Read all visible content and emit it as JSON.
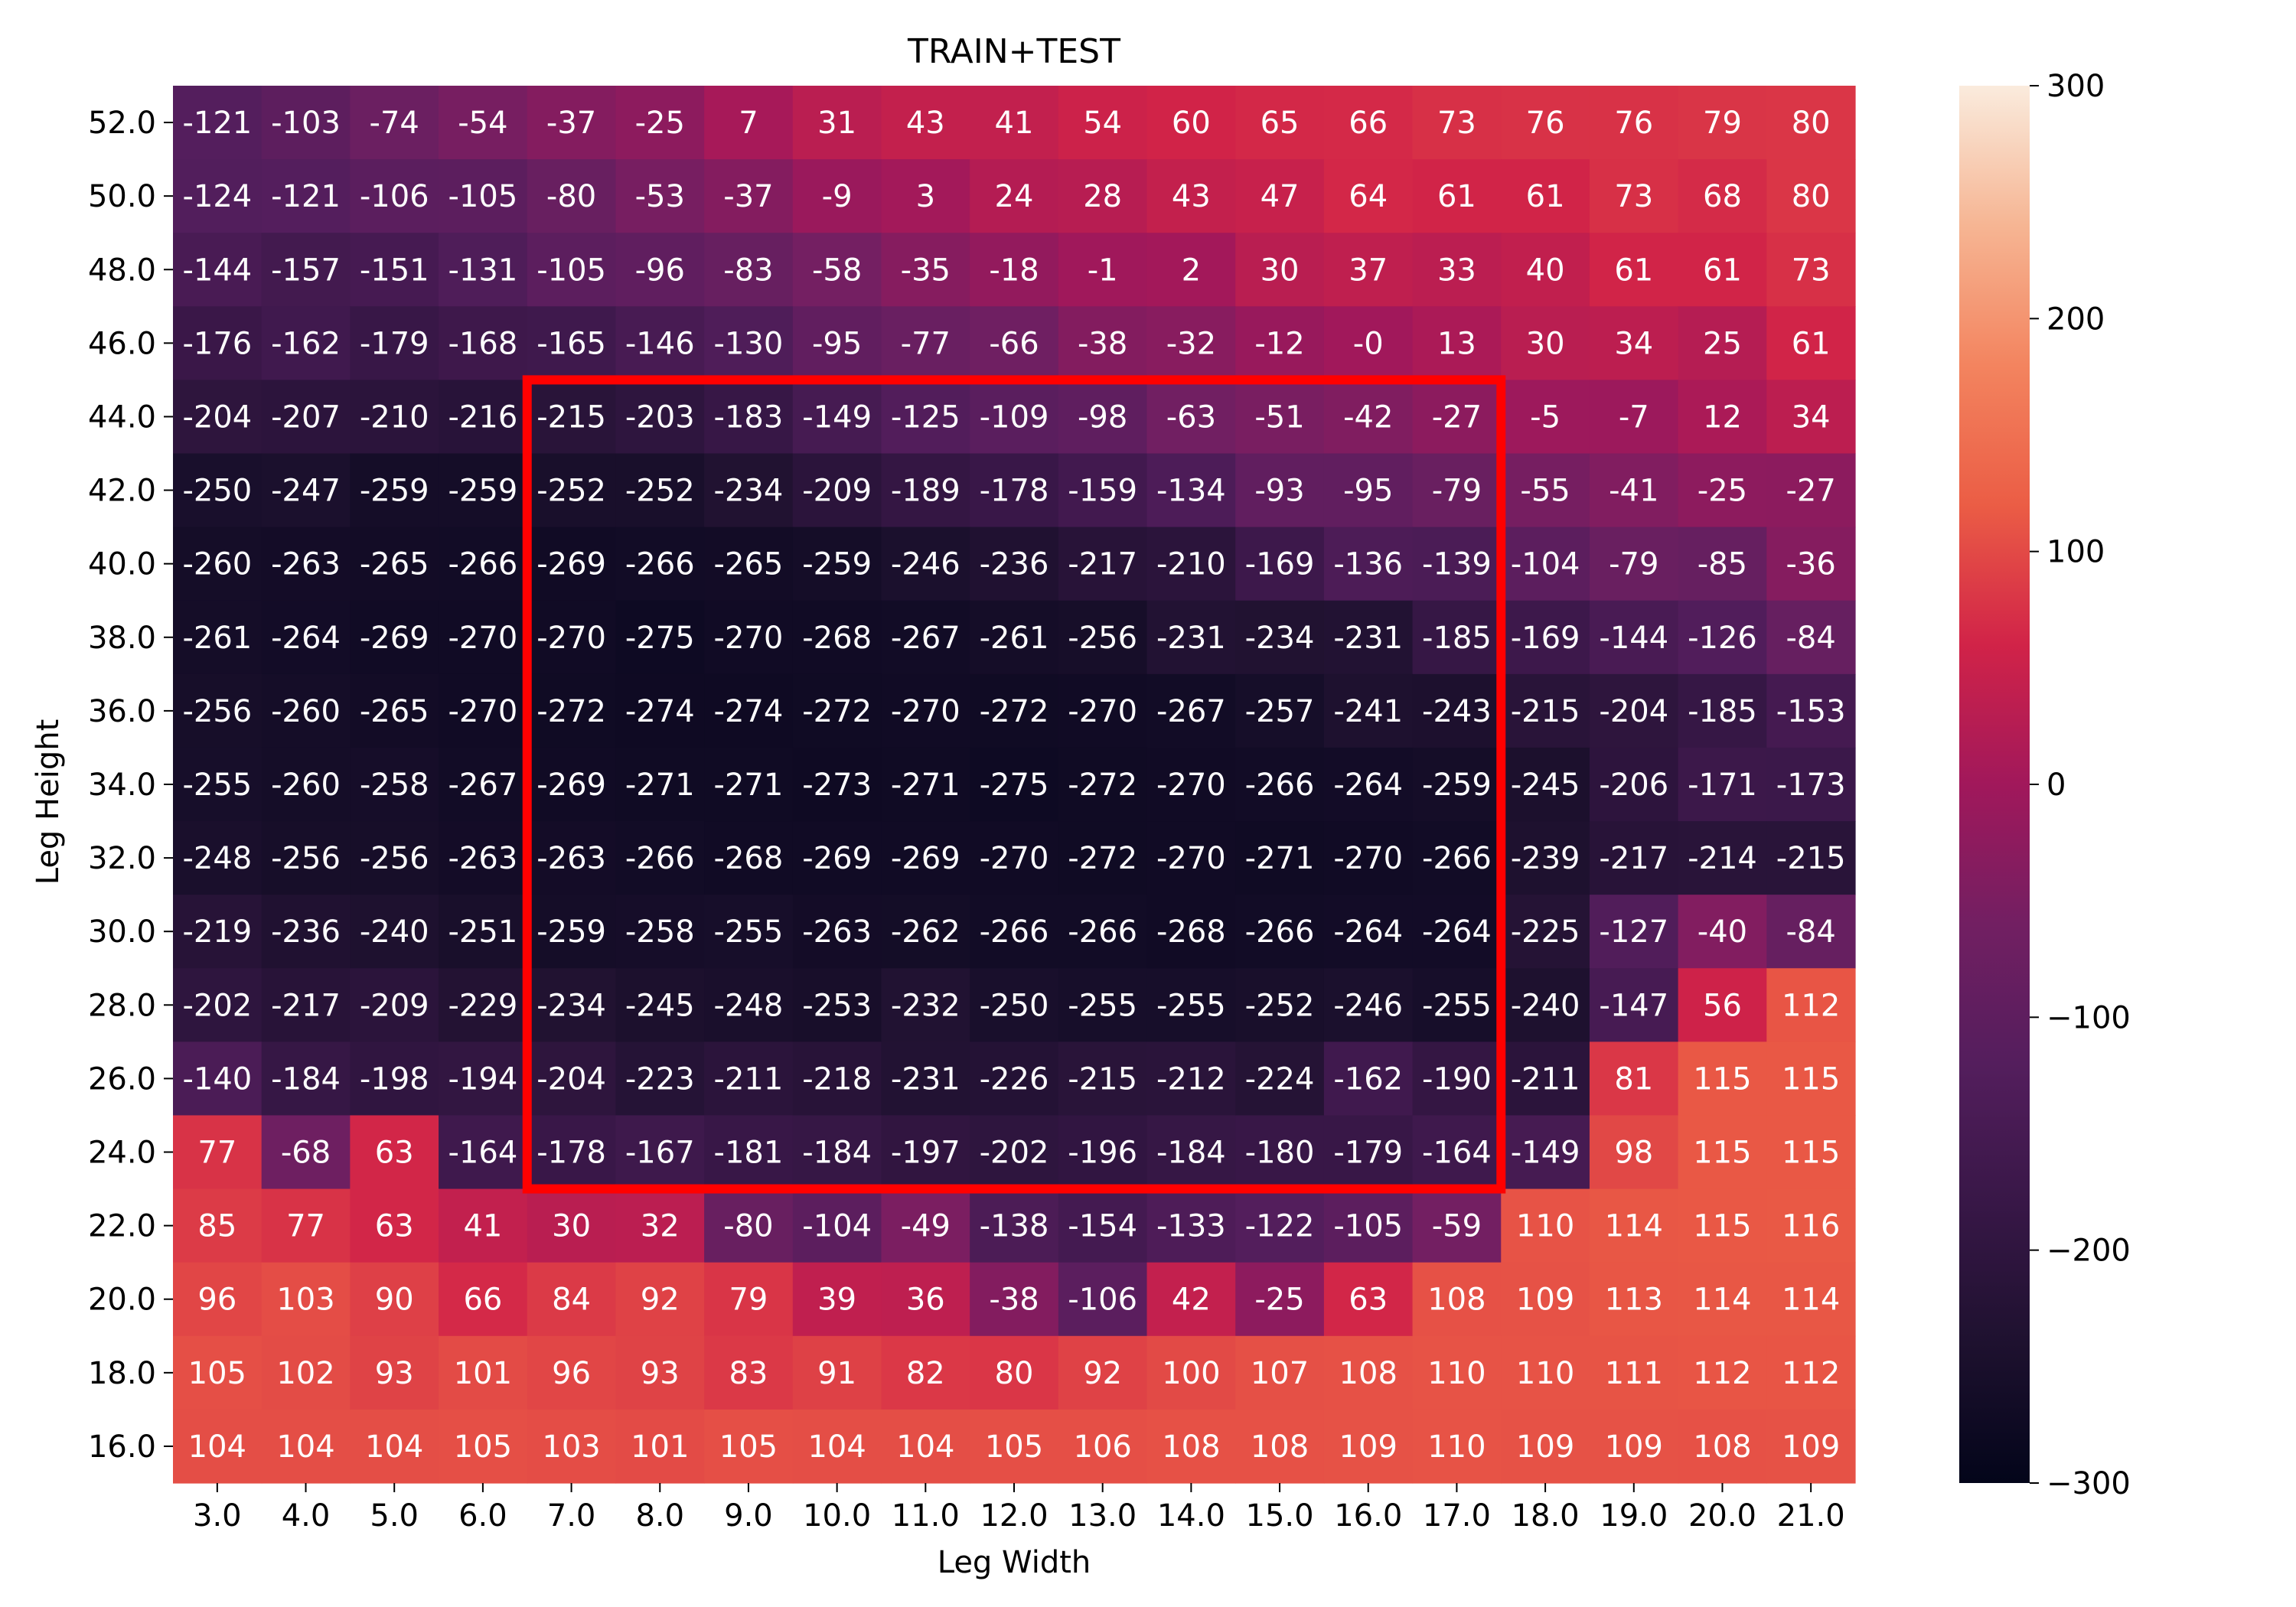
{
  "chart_data": {
    "type": "heatmap",
    "title": "TRAIN+TEST",
    "xlabel": "Leg Width",
    "ylabel": "Leg Height",
    "x": [
      "3.0",
      "4.0",
      "5.0",
      "6.0",
      "7.0",
      "8.0",
      "9.0",
      "10.0",
      "11.0",
      "12.0",
      "13.0",
      "14.0",
      "15.0",
      "16.0",
      "17.0",
      "18.0",
      "19.0",
      "20.0",
      "21.0"
    ],
    "y": [
      "52.0",
      "50.0",
      "48.0",
      "46.0",
      "44.0",
      "42.0",
      "40.0",
      "38.0",
      "36.0",
      "34.0",
      "32.0",
      "30.0",
      "28.0",
      "26.0",
      "24.0",
      "22.0",
      "20.0",
      "18.0",
      "16.0"
    ],
    "cell_labels": [
      [
        "-121",
        "-103",
        "-74",
        "-54",
        "-37",
        "-25",
        "7",
        "31",
        "43",
        "41",
        "54",
        "60",
        "65",
        "66",
        "73",
        "76",
        "76",
        "79",
        "80"
      ],
      [
        "-124",
        "-121",
        "-106",
        "-105",
        "-80",
        "-53",
        "-37",
        "-9",
        "3",
        "24",
        "28",
        "43",
        "47",
        "64",
        "61",
        "61",
        "73",
        "68",
        "80"
      ],
      [
        "-144",
        "-157",
        "-151",
        "-131",
        "-105",
        "-96",
        "-83",
        "-58",
        "-35",
        "-18",
        "-1",
        "2",
        "30",
        "37",
        "33",
        "40",
        "61",
        "61",
        "73"
      ],
      [
        "-176",
        "-162",
        "-179",
        "-168",
        "-165",
        "-146",
        "-130",
        "-95",
        "-77",
        "-66",
        "-38",
        "-32",
        "-12",
        "-0",
        "13",
        "30",
        "34",
        "25",
        "61"
      ],
      [
        "-204",
        "-207",
        "-210",
        "-216",
        "-215",
        "-203",
        "-183",
        "-149",
        "-125",
        "-109",
        "-98",
        "-63",
        "-51",
        "-42",
        "-27",
        "-5",
        "-7",
        "12",
        "34"
      ],
      [
        "-250",
        "-247",
        "-259",
        "-259",
        "-252",
        "-252",
        "-234",
        "-209",
        "-189",
        "-178",
        "-159",
        "-134",
        "-93",
        "-95",
        "-79",
        "-55",
        "-41",
        "-25",
        "-27"
      ],
      [
        "-260",
        "-263",
        "-265",
        "-266",
        "-269",
        "-266",
        "-265",
        "-259",
        "-246",
        "-236",
        "-217",
        "-210",
        "-169",
        "-136",
        "-139",
        "-104",
        "-79",
        "-85",
        "-36"
      ],
      [
        "-261",
        "-264",
        "-269",
        "-270",
        "-270",
        "-275",
        "-270",
        "-268",
        "-267",
        "-261",
        "-256",
        "-231",
        "-234",
        "-231",
        "-185",
        "-169",
        "-144",
        "-126",
        "-84"
      ],
      [
        "-256",
        "-260",
        "-265",
        "-270",
        "-272",
        "-274",
        "-274",
        "-272",
        "-270",
        "-272",
        "-270",
        "-267",
        "-257",
        "-241",
        "-243",
        "-215",
        "-204",
        "-185",
        "-153"
      ],
      [
        "-255",
        "-260",
        "-258",
        "-267",
        "-269",
        "-271",
        "-271",
        "-273",
        "-271",
        "-275",
        "-272",
        "-270",
        "-266",
        "-264",
        "-259",
        "-245",
        "-206",
        "-171",
        "-173"
      ],
      [
        "-248",
        "-256",
        "-256",
        "-263",
        "-263",
        "-266",
        "-268",
        "-269",
        "-269",
        "-270",
        "-272",
        "-270",
        "-271",
        "-270",
        "-266",
        "-239",
        "-217",
        "-214",
        "-215"
      ],
      [
        "-219",
        "-236",
        "-240",
        "-251",
        "-259",
        "-258",
        "-255",
        "-263",
        "-262",
        "-266",
        "-266",
        "-268",
        "-266",
        "-264",
        "-264",
        "-225",
        "-127",
        "-40",
        "-84"
      ],
      [
        "-202",
        "-217",
        "-209",
        "-229",
        "-234",
        "-245",
        "-248",
        "-253",
        "-232",
        "-250",
        "-255",
        "-255",
        "-252",
        "-246",
        "-255",
        "-240",
        "-147",
        "56",
        "112"
      ],
      [
        "-140",
        "-184",
        "-198",
        "-194",
        "-204",
        "-223",
        "-211",
        "-218",
        "-231",
        "-226",
        "-215",
        "-212",
        "-224",
        "-162",
        "-190",
        "-211",
        "81",
        "115",
        "115"
      ],
      [
        "77",
        "-68",
        "63",
        "-164",
        "-178",
        "-167",
        "-181",
        "-184",
        "-197",
        "-202",
        "-196",
        "-184",
        "-180",
        "-179",
        "-164",
        "-149",
        "98",
        "115",
        "115"
      ],
      [
        "85",
        "77",
        "63",
        "41",
        "30",
        "32",
        "-80",
        "-104",
        "-49",
        "-138",
        "-154",
        "-133",
        "-122",
        "-105",
        "-59",
        "110",
        "114",
        "115",
        "116"
      ],
      [
        "96",
        "103",
        "90",
        "66",
        "84",
        "92",
        "79",
        "39",
        "36",
        "-38",
        "-106",
        "42",
        "-25",
        "63",
        "108",
        "109",
        "113",
        "114",
        "114"
      ],
      [
        "105",
        "102",
        "93",
        "101",
        "96",
        "93",
        "83",
        "91",
        "82",
        "80",
        "92",
        "100",
        "107",
        "108",
        "110",
        "110",
        "111",
        "112",
        "112"
      ],
      [
        "104",
        "104",
        "104",
        "105",
        "103",
        "101",
        "105",
        "104",
        "104",
        "105",
        "106",
        "108",
        "108",
        "109",
        "110",
        "109",
        "109",
        "108",
        "109"
      ]
    ],
    "value_range": [
      -300,
      300
    ],
    "colorbar": {
      "ticks": [
        300,
        200,
        100,
        0,
        -100,
        -200,
        -300
      ],
      "tick_labels": [
        "300",
        "200",
        "100",
        "0",
        "−100",
        "−200",
        "−300"
      ]
    },
    "highlight_box": {
      "x_range": [
        "7.0",
        "17.0"
      ],
      "y_range": [
        "44.0",
        "24.0"
      ],
      "color": "#ff0000"
    },
    "colormap": "rocket"
  }
}
